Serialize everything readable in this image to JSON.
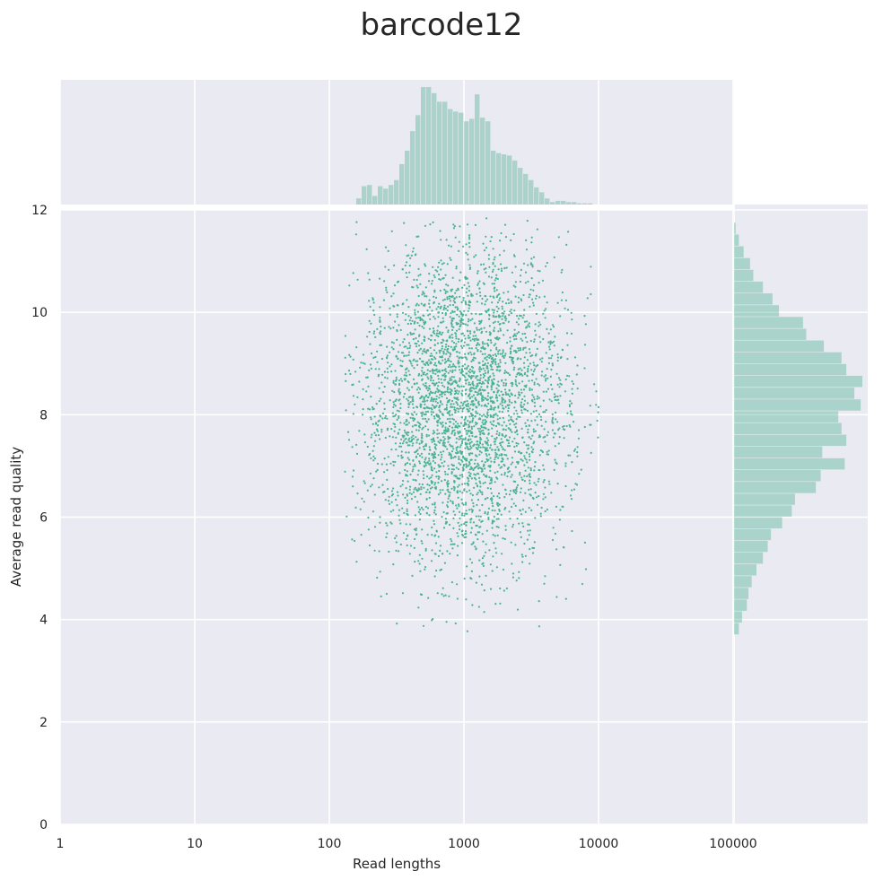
{
  "chart_data": {
    "type": "scatter",
    "title": "barcode12",
    "xlabel": "Read lengths",
    "ylabel": "Average read quality",
    "x_scale": "log",
    "xlim": [
      1,
      1000000
    ],
    "ylim": [
      0,
      12
    ],
    "x_ticks": [
      {
        "value": 1,
        "label": "1"
      },
      {
        "value": 10,
        "label": "10"
      },
      {
        "value": 100,
        "label": "100"
      },
      {
        "value": 1000,
        "label": "1000"
      },
      {
        "value": 10000,
        "label": "10000"
      },
      {
        "value": 100000,
        "label": "100000"
      }
    ],
    "y_ticks": [
      {
        "value": 0,
        "label": "0"
      },
      {
        "value": 2,
        "label": "2"
      },
      {
        "value": 4,
        "label": "4"
      },
      {
        "value": 6,
        "label": "6"
      },
      {
        "value": 8,
        "label": "8"
      },
      {
        "value": 10,
        "label": "10"
      },
      {
        "value": 12,
        "label": "12"
      }
    ],
    "grid": true,
    "colors": {
      "point": "#4cb391",
      "histogram": "#4cb391",
      "plot_background": "#eaeaf2",
      "grid": "#ffffff"
    },
    "scatter_summary": {
      "x_range": [
        130,
        10500
      ],
      "x_center": 1000,
      "y_range": [
        3.7,
        11.85
      ],
      "y_center": 8.2
    },
    "x_histogram": {
      "bin_edges_log10": [
        2.2,
        2.24,
        2.28,
        2.32,
        2.36,
        2.4,
        2.44,
        2.48,
        2.52,
        2.56,
        2.6,
        2.64,
        2.68,
        2.72,
        2.76,
        2.8,
        2.84,
        2.88,
        2.92,
        2.96,
        3.0,
        3.04,
        3.08,
        3.12,
        3.16,
        3.2,
        3.24,
        3.28,
        3.32,
        3.36,
        3.4,
        3.44,
        3.48,
        3.52,
        3.56,
        3.6,
        3.64,
        3.68,
        3.72,
        3.76,
        3.8,
        3.84,
        3.88,
        3.92,
        3.96
      ],
      "counts": [
        5,
        15,
        16,
        7,
        15,
        13,
        16,
        20,
        33,
        44,
        60,
        73,
        96,
        96,
        91,
        84,
        84,
        78,
        76,
        75,
        68,
        70,
        90,
        71,
        68,
        44,
        42,
        41,
        40,
        36,
        30,
        25,
        20,
        14,
        10,
        5,
        2,
        3,
        3,
        2,
        2,
        1,
        1,
        1
      ]
    },
    "y_histogram": {
      "bin_edges": [
        3.7,
        3.93,
        4.16,
        4.39,
        4.62,
        4.85,
        5.08,
        5.31,
        5.54,
        5.77,
        6.0,
        6.23,
        6.46,
        6.69,
        6.92,
        7.15,
        7.38,
        7.61,
        7.84,
        8.07,
        8.3,
        8.53,
        8.76,
        8.99,
        9.22,
        9.45,
        9.68,
        9.91,
        10.14,
        10.37,
        10.6,
        10.83,
        11.06,
        11.29,
        11.52,
        11.75
      ],
      "counts": [
        3,
        5,
        8,
        9,
        11,
        14,
        18,
        21,
        23,
        30,
        36,
        38,
        51,
        54,
        69,
        55,
        70,
        67,
        65,
        79,
        75,
        80,
        70,
        67,
        56,
        45,
        43,
        28,
        24,
        18,
        12,
        10,
        6,
        3,
        1
      ]
    }
  }
}
